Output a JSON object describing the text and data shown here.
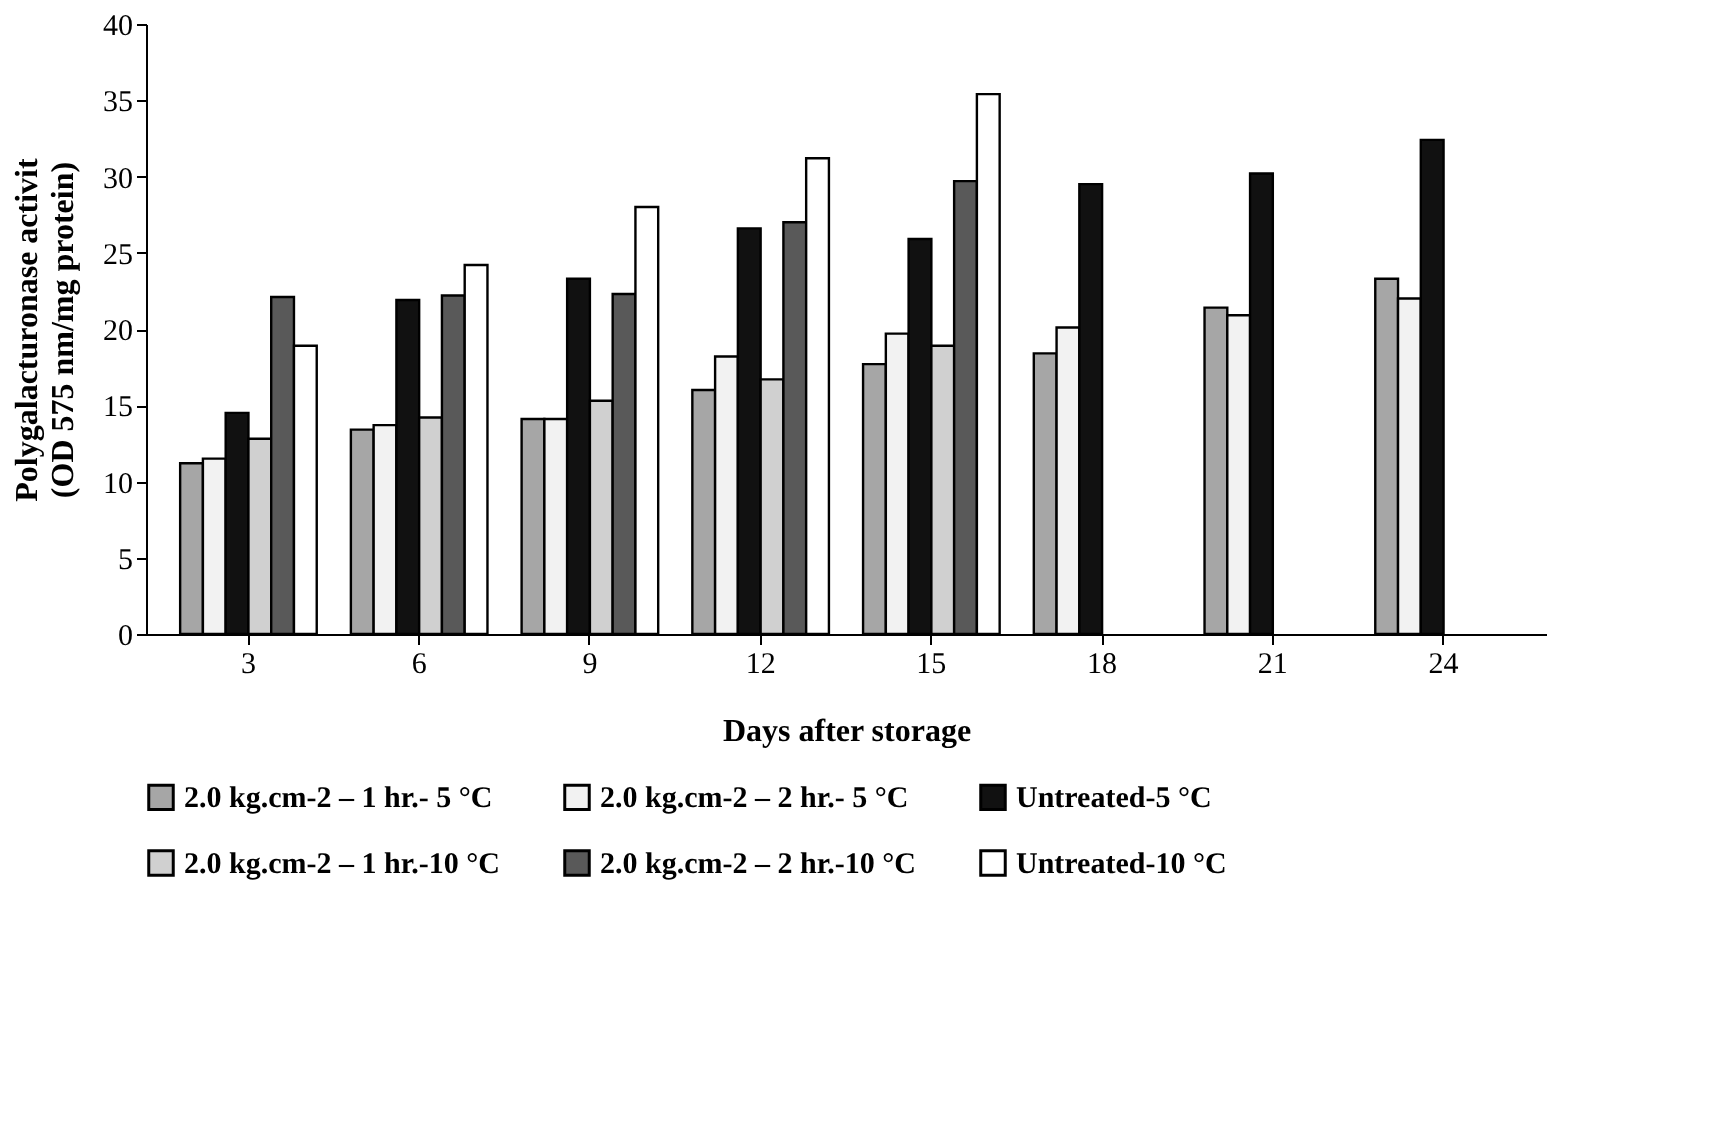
{
  "chart_data": {
    "type": "bar",
    "xlabel": "Days after storage",
    "ylabel": "Polygalacturonase activit\n(OD 575 nm/mg protein)",
    "categories": [
      "3",
      "6",
      "9",
      "12",
      "15",
      "18",
      "21",
      "24"
    ],
    "series": [
      {
        "name": "2.0 kg.cm-2  – 1 hr.- 5 °C",
        "color": "#a6a6a6",
        "values": [
          11.2,
          13.4,
          14.1,
          16.0,
          17.7,
          18.4,
          21.4,
          23.3
        ]
      },
      {
        "name": "2.0 kg.cm-2  – 2 hr.- 5 °C",
        "color": "#f2f2f2",
        "values": [
          11.5,
          13.7,
          14.1,
          18.2,
          19.7,
          20.1,
          20.9,
          22.0
        ]
      },
      {
        "name": "Untreated-5 °C",
        "color": "#111111",
        "values": [
          14.5,
          21.9,
          23.3,
          26.6,
          25.9,
          29.5,
          30.2,
          32.4
        ]
      },
      {
        "name": "2.0 kg.cm-2  – 1 hr.-10 °C",
        "color": "#d0d0d0",
        "values": [
          12.8,
          14.2,
          15.3,
          16.7,
          18.9,
          null,
          null,
          null
        ]
      },
      {
        "name": "2.0 kg.cm-2  – 2 hr.-10 °C",
        "color": "#595959",
        "values": [
          22.1,
          22.2,
          22.3,
          27.0,
          29.7,
          null,
          null,
          null
        ]
      },
      {
        "name": "Untreated-10 °C",
        "color": "#ffffff",
        "values": [
          18.9,
          24.2,
          28.0,
          31.2,
          35.4,
          null,
          null,
          null
        ]
      }
    ],
    "ylim": [
      0,
      40
    ],
    "yticks": [
      0,
      5,
      10,
      15,
      20,
      25,
      30,
      35,
      40
    ],
    "grid": false,
    "legend": "bottom"
  }
}
